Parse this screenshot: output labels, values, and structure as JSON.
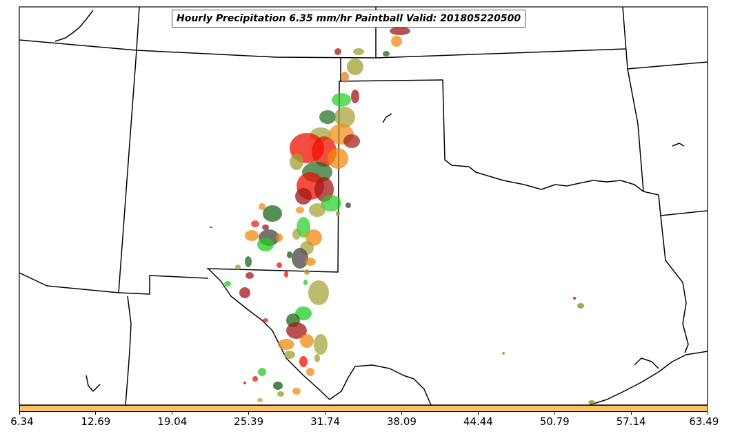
{
  "title": "Hourly Precipitation 6.35 mm/hr Paintball Valid: 201805220500",
  "colorbar": {
    "color": "#ffc060",
    "ticks": [
      "6.34",
      "12.69",
      "19.04",
      "25.39",
      "31.74",
      "38.09",
      "44.44",
      "50.79",
      "57.14",
      "63.49"
    ]
  },
  "legend_colors": {
    "border": "#000000",
    "paint_red": "#ee1100",
    "paint_darkred": "#a01818",
    "paint_orange": "#f08a10",
    "paint_green": "#22cc22",
    "paint_darkgreen": "#1c6a1c",
    "paint_olive": "#a0a030",
    "paint_gray": "#505050"
  }
}
